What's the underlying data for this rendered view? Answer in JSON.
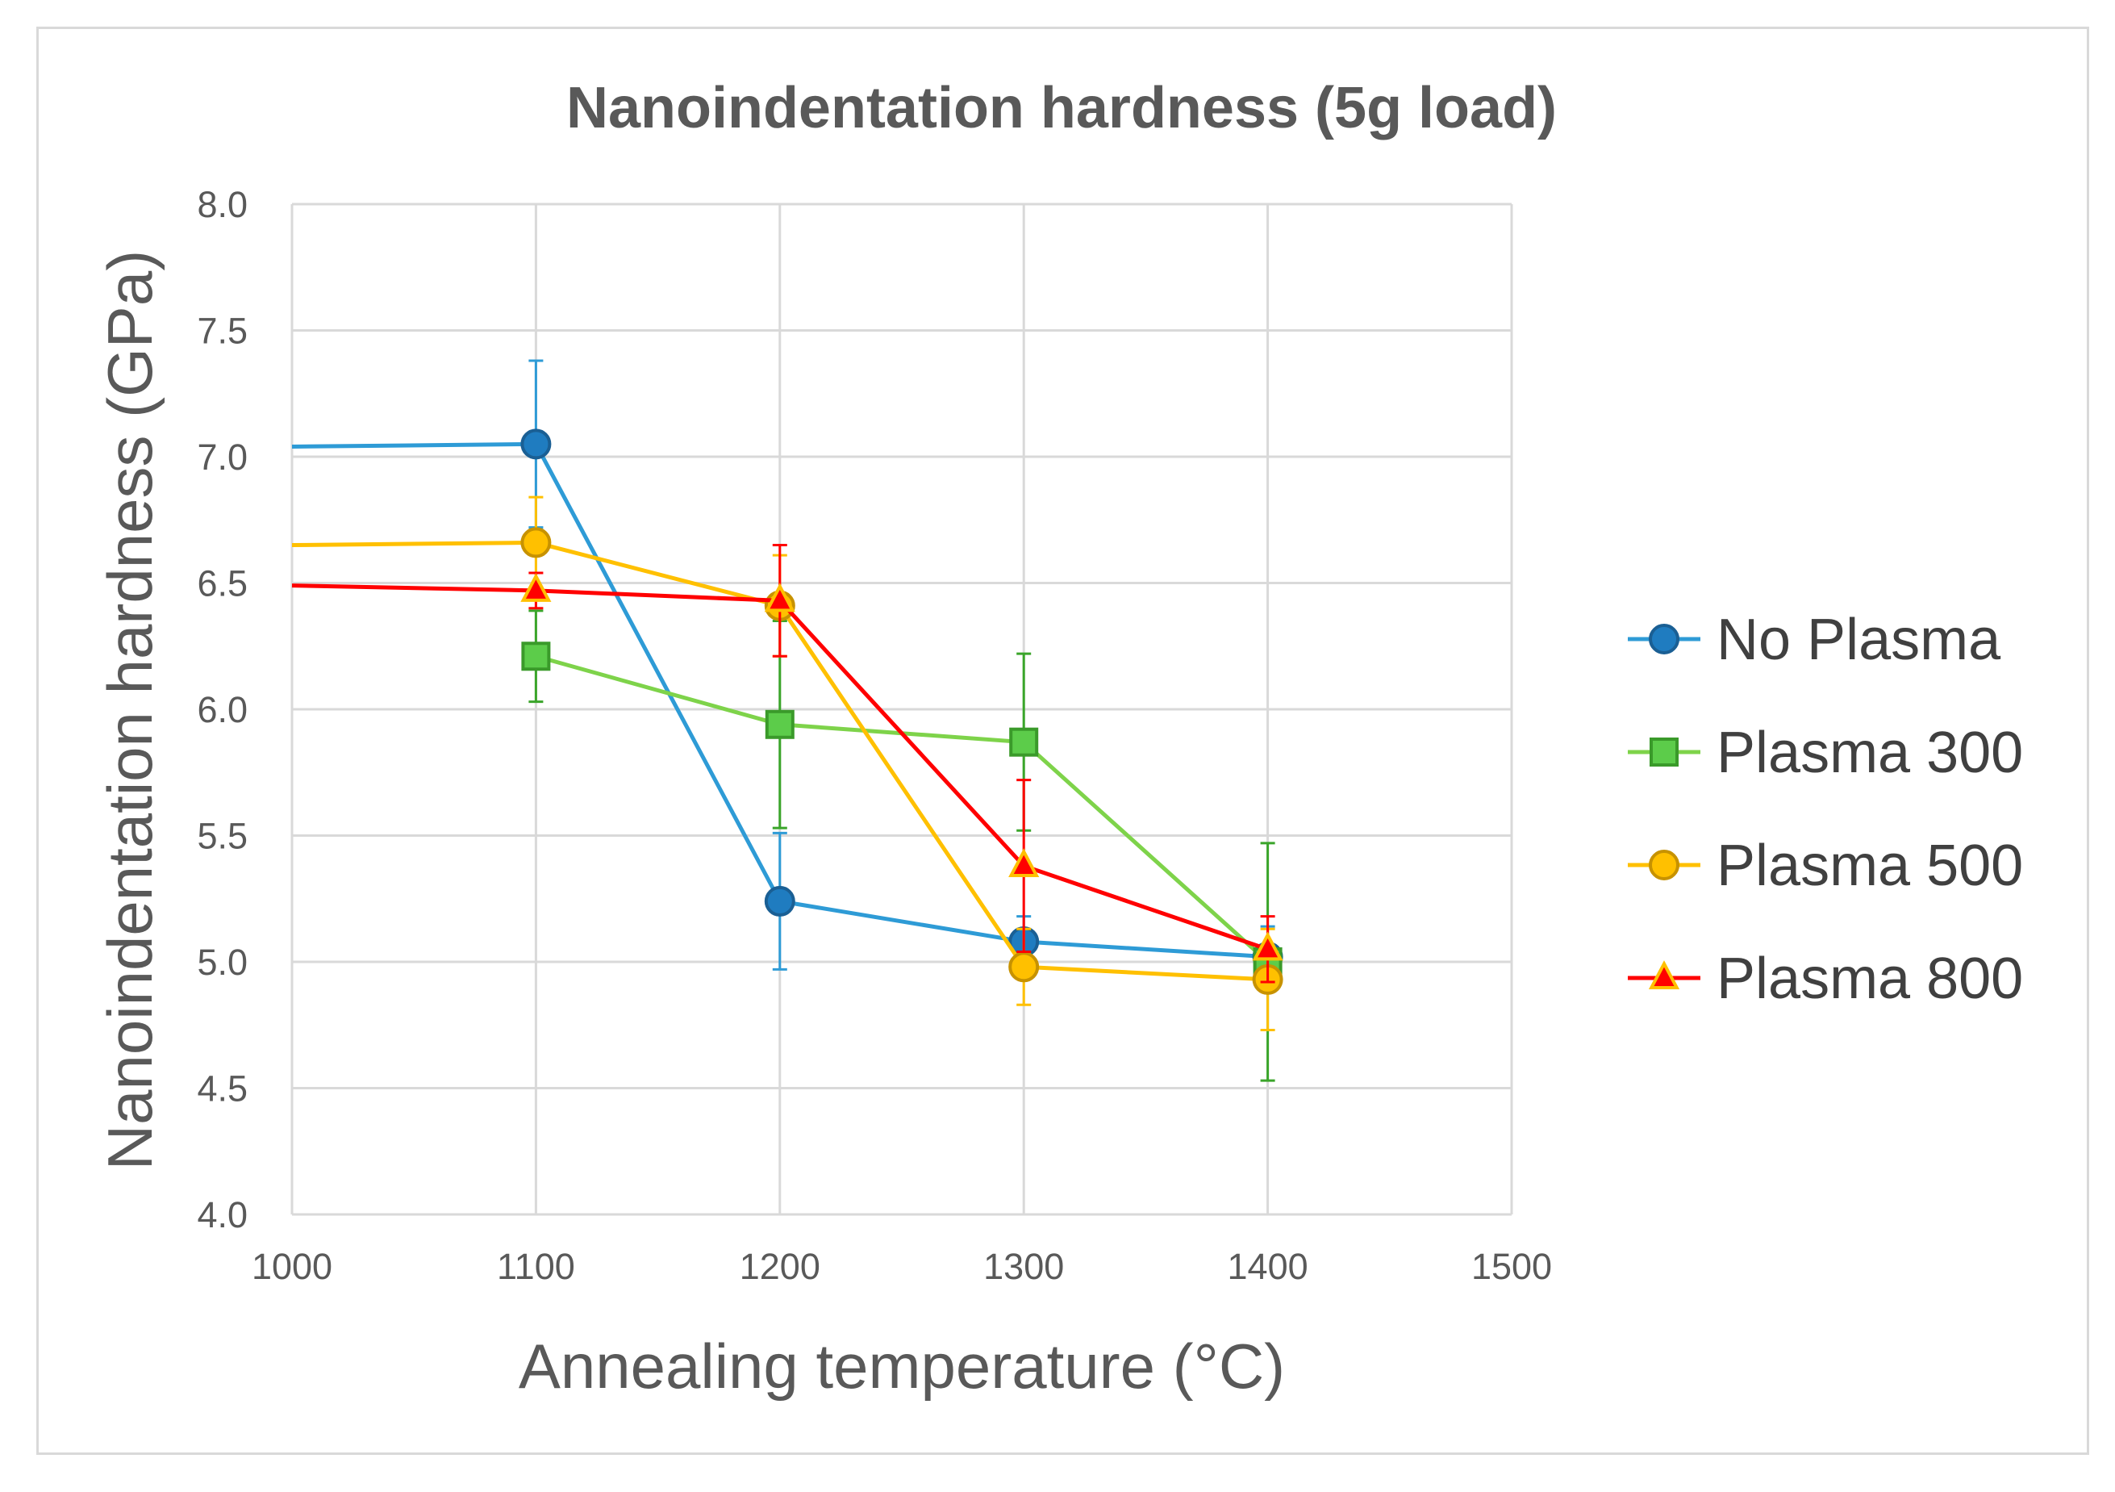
{
  "chart_data": {
    "type": "line",
    "title": "Nanoindentation hardness (5g load)",
    "xlabel": "Annealing temperature (°C)",
    "ylabel": "Nanoindentation hardness (GPa)",
    "xlim": [
      1000,
      1500
    ],
    "ylim": [
      4.0,
      8.0
    ],
    "x_ticks": [
      "1000",
      "1100",
      "1200",
      "1300",
      "1400",
      "1500"
    ],
    "y_ticks": [
      "4.0",
      "4.5",
      "5.0",
      "5.5",
      "6.0",
      "6.5",
      "7.0",
      "7.5",
      "8.0"
    ],
    "grid": true,
    "legend_position": "right",
    "series": [
      {
        "name": "No Plasma",
        "color": "#2e9bd6",
        "marker_fill": "#1f7cc0",
        "marker_stroke": "#1a5f94",
        "marker": "circle",
        "x": [
          1000,
          1100,
          1200,
          1300,
          1400
        ],
        "y": [
          7.04,
          7.05,
          5.24,
          5.08,
          5.02
        ],
        "error": [
          null,
          0.33,
          0.27,
          0.1,
          0.12
        ],
        "markers": [
          false,
          true,
          true,
          true,
          true
        ]
      },
      {
        "name": "Plasma 300",
        "color": "#7ed34a",
        "marker_fill": "#5ccc4a",
        "marker_stroke": "#3a9a2a",
        "marker": "square",
        "x": [
          1100,
          1200,
          1300,
          1400
        ],
        "y": [
          6.21,
          5.94,
          5.87,
          5.0
        ],
        "error": [
          0.18,
          0.41,
          0.35,
          0.47
        ],
        "markers": [
          true,
          true,
          true,
          true
        ]
      },
      {
        "name": "Plasma 500",
        "color": "#ffc000",
        "marker_fill": "#ffc000",
        "marker_stroke": "#c79200",
        "marker": "circle",
        "x": [
          1000,
          1100,
          1200,
          1300,
          1400
        ],
        "y": [
          6.65,
          6.66,
          6.41,
          4.98,
          4.93
        ],
        "error": [
          null,
          0.18,
          0.2,
          0.15,
          0.2
        ],
        "markers": [
          false,
          true,
          true,
          true,
          true
        ]
      },
      {
        "name": "Plasma 800",
        "color": "#ff0000",
        "marker_fill": "#ff0000",
        "marker_stroke": "#ffc000",
        "marker": "triangle",
        "x": [
          1000,
          1100,
          1200,
          1300,
          1400
        ],
        "y": [
          6.49,
          6.47,
          6.43,
          5.38,
          5.05
        ],
        "error": [
          null,
          0.07,
          0.22,
          0.34,
          0.13
        ],
        "markers": [
          false,
          true,
          true,
          true,
          true
        ]
      }
    ]
  }
}
